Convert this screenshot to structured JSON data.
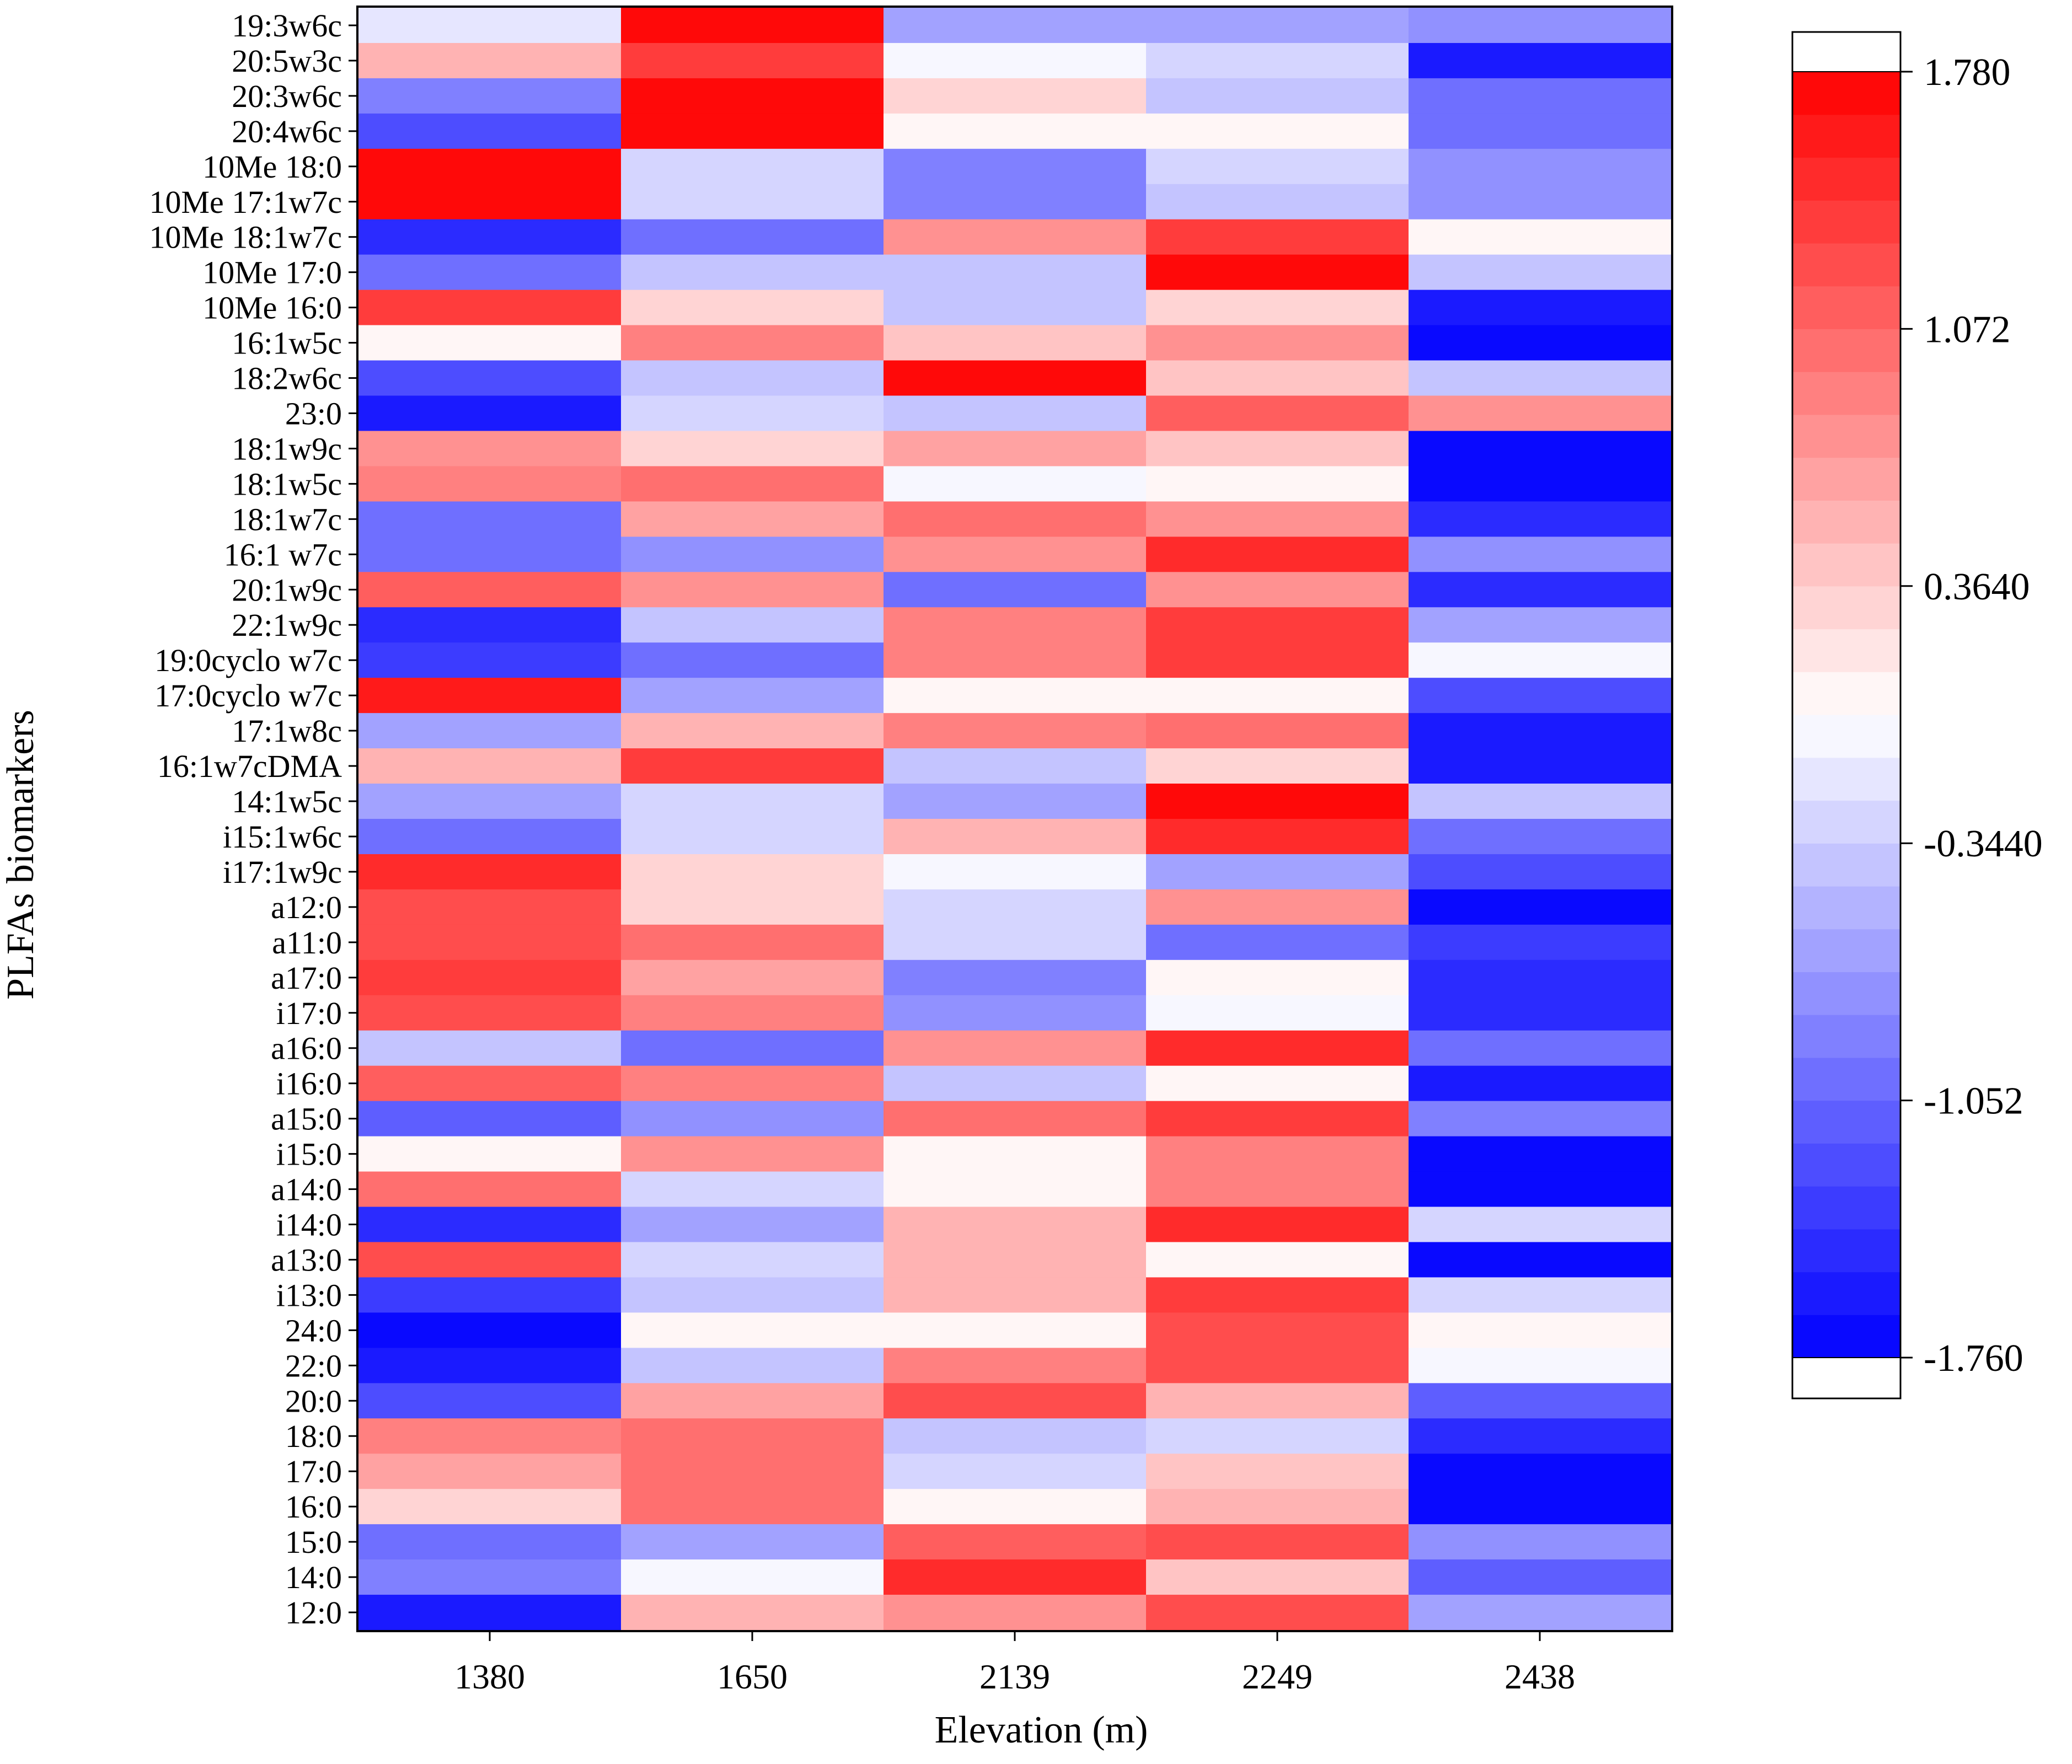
{
  "chart_data": {
    "type": "heatmap",
    "xlabel": "Elevation (m)",
    "ylabel": "PLFAs biomarkers",
    "x_categories": [
      "1380",
      "1650",
      "2139",
      "2249",
      "2438"
    ],
    "y_categories": [
      "19:3w6c",
      "20:5w3c",
      "20:3w6c",
      "20:4w6c",
      "10Me 18:0",
      "10Me 17:1w7c",
      "10Me 18:1w7c",
      "10Me 17:0",
      "10Me 16:0",
      "16:1w5c",
      "18:2w6c",
      "23:0",
      "18:1w9c",
      "18:1w5c",
      "18:1w7c",
      "16:1 w7c",
      "20:1w9c",
      "22:1w9c",
      "19:0cyclo w7c",
      "17:0cyclo w7c",
      "17:1w8c",
      "16:1w7cDMA",
      "14:1w5c",
      "i15:1w6c",
      "i17:1w9c",
      "a12:0",
      "a11:0",
      "a17:0",
      "i17:0",
      "a16:0",
      "i16:0",
      "a15:0",
      "i15:0",
      "a14:0",
      "i14:0",
      "a13:0",
      "i13:0",
      "24:0",
      "22:0",
      "20:0",
      "18:0",
      "17:0",
      "16:0",
      "15:0",
      "14:0",
      "12:0"
    ],
    "values": [
      [
        -0.2,
        1.78,
        -0.62,
        -0.62,
        -0.8
      ],
      [
        0.56,
        1.37,
        -0.05,
        -0.27,
        -1.64
      ],
      [
        -0.85,
        1.78,
        0.26,
        -0.45,
        -0.94
      ],
      [
        -1.22,
        1.7,
        0.09,
        0.09,
        -0.94
      ],
      [
        1.78,
        -0.3,
        -0.85,
        -0.3,
        -0.8
      ],
      [
        1.78,
        -0.3,
        -0.85,
        -0.45,
        -0.7
      ],
      [
        -1.52,
        -0.94,
        0.8,
        1.37,
        0.09
      ],
      [
        -0.94,
        -0.45,
        -0.36,
        1.78,
        -0.45
      ],
      [
        1.37,
        0.26,
        -0.36,
        0.26,
        -1.64
      ],
      [
        0.09,
        0.9,
        0.45,
        0.72,
        -1.76
      ],
      [
        -1.22,
        -0.45,
        1.7,
        0.45,
        -0.36
      ],
      [
        -1.64,
        -0.27,
        -0.36,
        1.12,
        0.8
      ],
      [
        0.8,
        0.26,
        0.63,
        0.45,
        -1.76
      ],
      [
        0.9,
        1.03,
        -0.05,
        0.09,
        -1.68
      ],
      [
        -0.94,
        0.63,
        1.03,
        0.8,
        -1.52
      ],
      [
        -1.03,
        -0.75,
        0.72,
        1.52,
        -0.7
      ],
      [
        1.12,
        0.8,
        -0.94,
        0.72,
        -1.52
      ],
      [
        -1.52,
        -0.36,
        0.9,
        1.37,
        -0.62
      ],
      [
        -1.4,
        -1.03,
        0.9,
        1.4,
        -0.05
      ],
      [
        1.65,
        -0.62,
        0.09,
        0.09,
        -1.22
      ],
      [
        -0.62,
        0.56,
        0.9,
        1.03,
        -1.64
      ],
      [
        0.56,
        1.37,
        -0.36,
        0.26,
        -1.64
      ],
      [
        -0.62,
        -0.27,
        -0.62,
        1.78,
        -0.45
      ],
      [
        -1.03,
        -0.27,
        0.56,
        1.52,
        -1.03
      ],
      [
        1.52,
        0.26,
        -0.05,
        -0.62,
        -1.22
      ],
      [
        1.2,
        0.26,
        -0.27,
        0.72,
        -1.68
      ],
      [
        1.2,
        1.03,
        -0.27,
        -0.94,
        -1.4
      ],
      [
        1.37,
        0.63,
        -0.85,
        0.09,
        -1.52
      ],
      [
        1.29,
        0.9,
        -0.7,
        -0.05,
        -1.52
      ],
      [
        -0.36,
        -0.94,
        0.72,
        1.52,
        -1.03
      ],
      [
        1.12,
        0.9,
        -0.45,
        0.09,
        -1.64
      ],
      [
        -1.12,
        -0.7,
        1.03,
        1.37,
        -0.85
      ],
      [
        0.09,
        0.72,
        0.09,
        0.9,
        -1.76
      ],
      [
        1.03,
        -0.27,
        0.09,
        0.9,
        -1.7
      ],
      [
        -1.52,
        -0.62,
        0.56,
        1.44,
        -0.27
      ],
      [
        1.29,
        -0.27,
        0.56,
        0.09,
        -1.68
      ],
      [
        -1.4,
        -0.45,
        0.56,
        1.4,
        -0.27
      ],
      [
        -1.76,
        0.09,
        0.09,
        1.29,
        0.09
      ],
      [
        -1.64,
        -0.36,
        0.9,
        1.29,
        -0.05
      ],
      [
        -1.22,
        0.63,
        1.2,
        0.56,
        -1.12
      ],
      [
        0.9,
        1.03,
        -0.45,
        -0.27,
        -1.52
      ],
      [
        0.63,
        1.03,
        -0.3,
        0.45,
        -1.68
      ],
      [
        0.26,
        1.03,
        0.09,
        0.56,
        -1.76
      ],
      [
        -0.94,
        -0.62,
        1.12,
        1.2,
        -0.75
      ],
      [
        -0.85,
        -0.05,
        1.52,
        0.45,
        -1.12
      ],
      [
        -1.64,
        0.56,
        0.72,
        1.2,
        -0.62
      ]
    ],
    "colorbar": {
      "ticks": [
        "1.780",
        "1.072",
        "0.3640",
        "-0.3440",
        "-1.052",
        "-1.760"
      ],
      "tick_values": [
        1.78,
        1.072,
        0.364,
        -0.344,
        -1.052,
        -1.76
      ],
      "vmin": -1.76,
      "vmax": 1.78,
      "levels": 30,
      "low_color": "#0000ff",
      "mid_color": "#ffffff",
      "high_color": "#ff0000"
    }
  }
}
